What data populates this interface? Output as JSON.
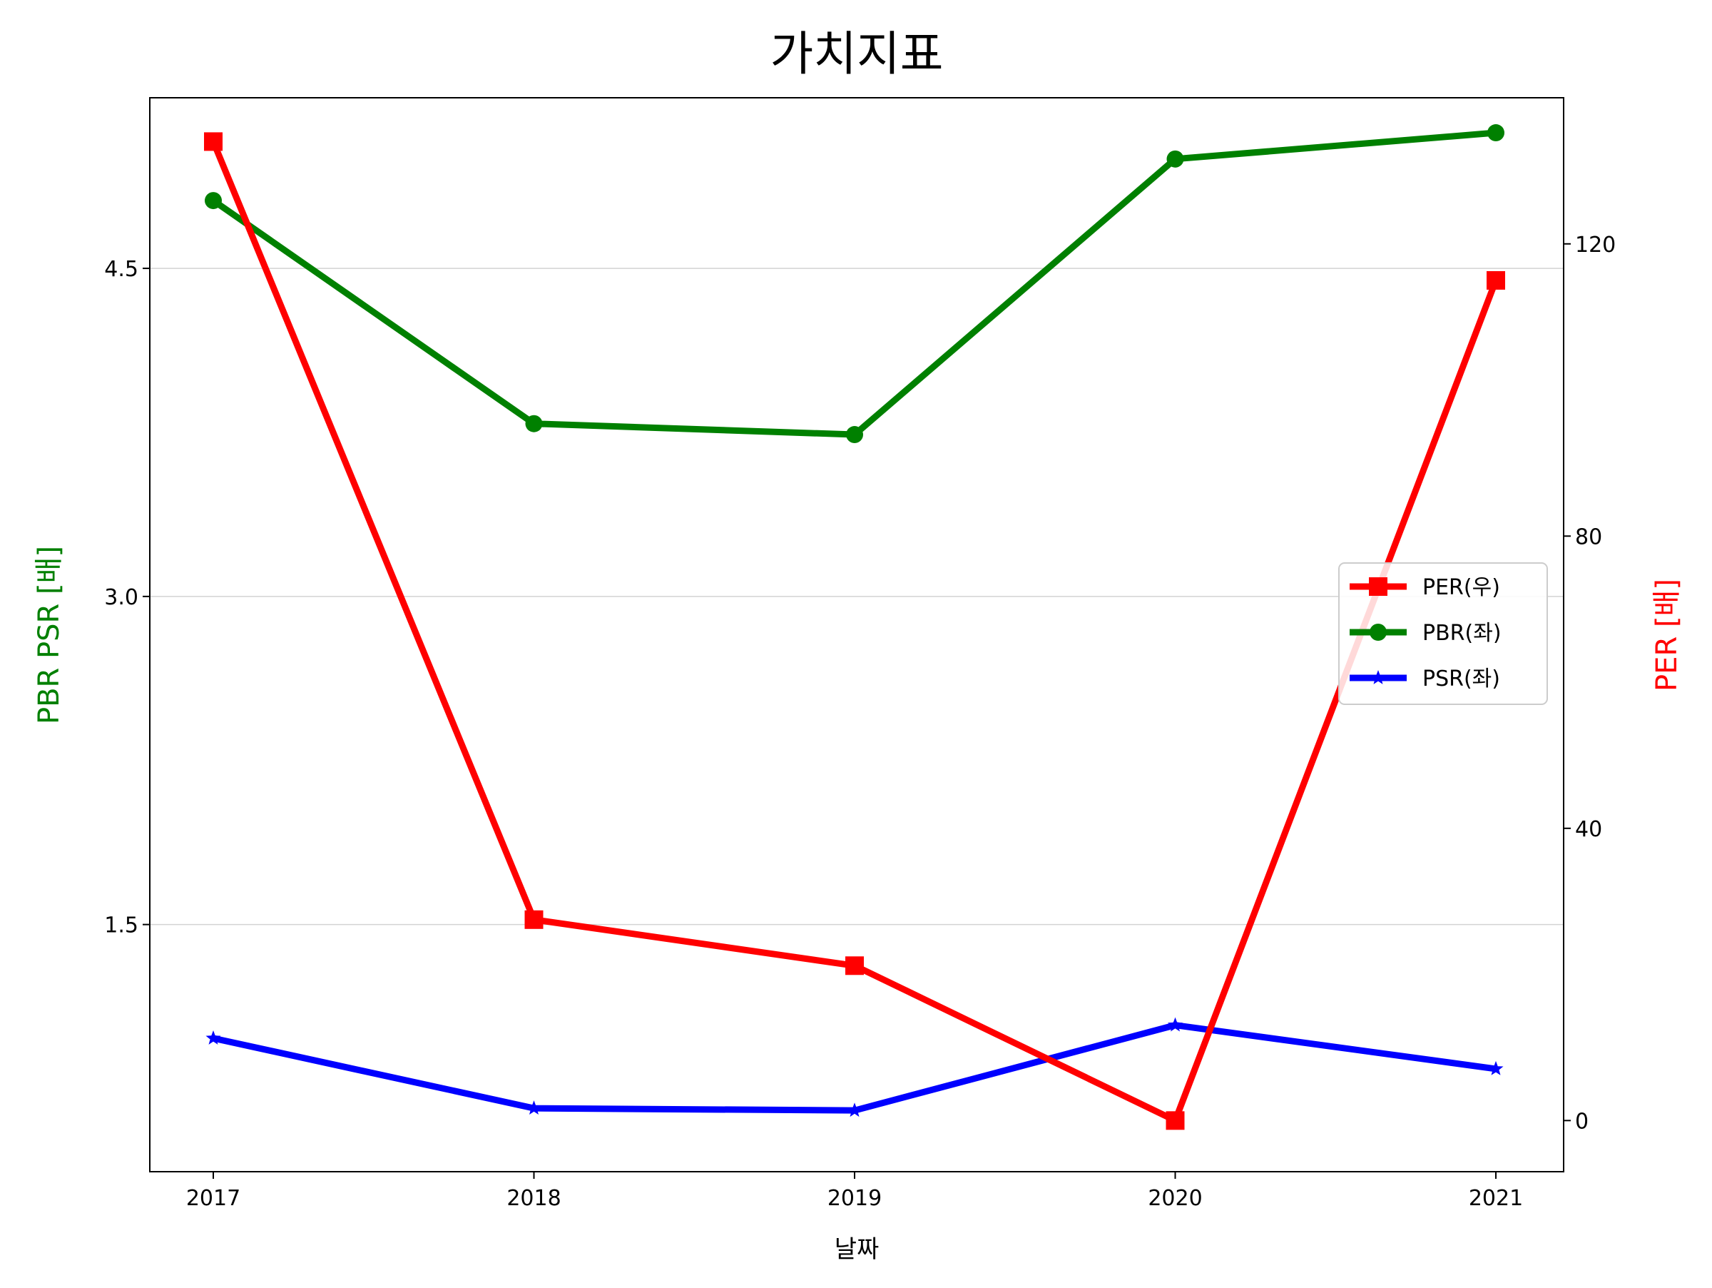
{
  "chart_data": {
    "type": "line",
    "title": "가치지표",
    "xlabel": "날짜",
    "ylabel_left": "PBR PSR [배]",
    "ylabel_right": "PER [배]",
    "categories": [
      "2017",
      "2018",
      "2019",
      "2020",
      "2021"
    ],
    "left_axis": {
      "ylim": [
        0.37,
        5.28
      ],
      "ticks": [
        1.5,
        3.0,
        4.5
      ],
      "tick_labels": [
        "1.5",
        "3.0",
        "4.5"
      ],
      "grid": true
    },
    "right_axis": {
      "ylim": [
        -7,
        140
      ],
      "ticks": [
        0,
        40,
        80,
        120
      ],
      "tick_labels": [
        "0",
        "40",
        "80",
        "120"
      ]
    },
    "series": [
      {
        "name": "PER(우)",
        "axis": "right",
        "color": "#ff0000",
        "marker": "square",
        "values": [
          134,
          27.5,
          21.2,
          0,
          115
        ]
      },
      {
        "name": "PBR(좌)",
        "axis": "left",
        "color": "#008000",
        "marker": "circle",
        "values": [
          4.81,
          3.79,
          3.74,
          5.0,
          5.12
        ]
      },
      {
        "name": "PSR(좌)",
        "axis": "left",
        "color": "#0000ff",
        "marker": "star",
        "values": [
          0.98,
          0.66,
          0.65,
          1.04,
          0.84
        ]
      }
    ],
    "legend_position": "center-right"
  }
}
